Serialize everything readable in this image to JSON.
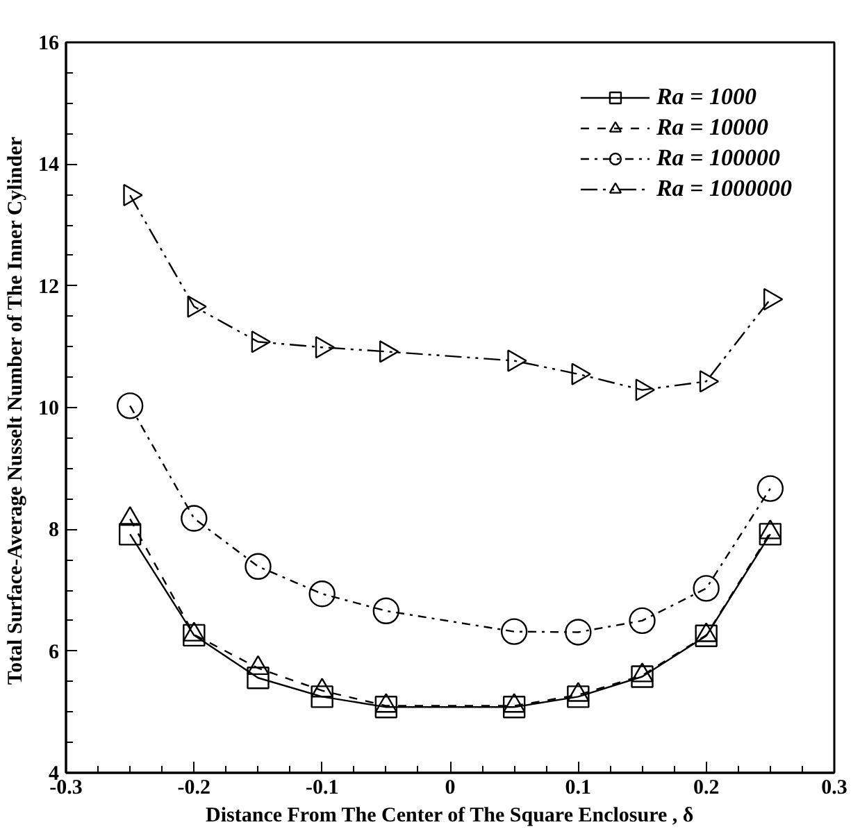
{
  "chart_data": {
    "type": "line",
    "xlabel": "Distance From The Center of The Square Enclosure , δ",
    "ylabel": "Total Surface-Average Nusselt Number of  The Inner Cylinder",
    "x": [
      -0.25,
      -0.2,
      -0.15,
      -0.1,
      -0.05,
      0.05,
      0.1,
      0.15,
      0.2,
      0.25
    ],
    "xlim": [
      -0.3,
      0.3
    ],
    "xticks": [
      -0.3,
      -0.2,
      -0.1,
      0,
      0.1,
      0.2,
      0.3
    ],
    "ylim": [
      4,
      16
    ],
    "yticks": [
      4,
      6,
      8,
      10,
      12,
      14,
      16
    ],
    "grid": false,
    "legend": "top right",
    "series": [
      {
        "name": "Ra = 1000",
        "color": "#000000",
        "marker": "square",
        "line_style": "solid",
        "values": [
          7.92,
          6.26,
          5.56,
          5.25,
          5.08,
          5.08,
          5.25,
          5.58,
          6.25,
          7.92
        ]
      },
      {
        "name": "Ra = 10000",
        "color": "#000000",
        "marker": "triangle",
        "line_style": "dashed",
        "values": [
          8.17,
          6.27,
          5.72,
          5.35,
          5.1,
          5.1,
          5.28,
          5.6,
          6.26,
          7.95
        ]
      },
      {
        "name": "Ra = 100000",
        "color": "#000000",
        "marker": "circle",
        "line_style": "dashdot",
        "values": [
          10.03,
          8.18,
          7.39,
          6.94,
          6.66,
          6.32,
          6.31,
          6.5,
          7.03,
          8.67
        ]
      },
      {
        "name": "Ra = 1000000",
        "color": "#000000",
        "marker": "triangle_right",
        "line_style": "dashdotdot",
        "values": [
          13.49,
          11.66,
          11.08,
          10.99,
          10.92,
          10.77,
          10.55,
          10.29,
          10.43,
          11.78
        ]
      }
    ]
  }
}
